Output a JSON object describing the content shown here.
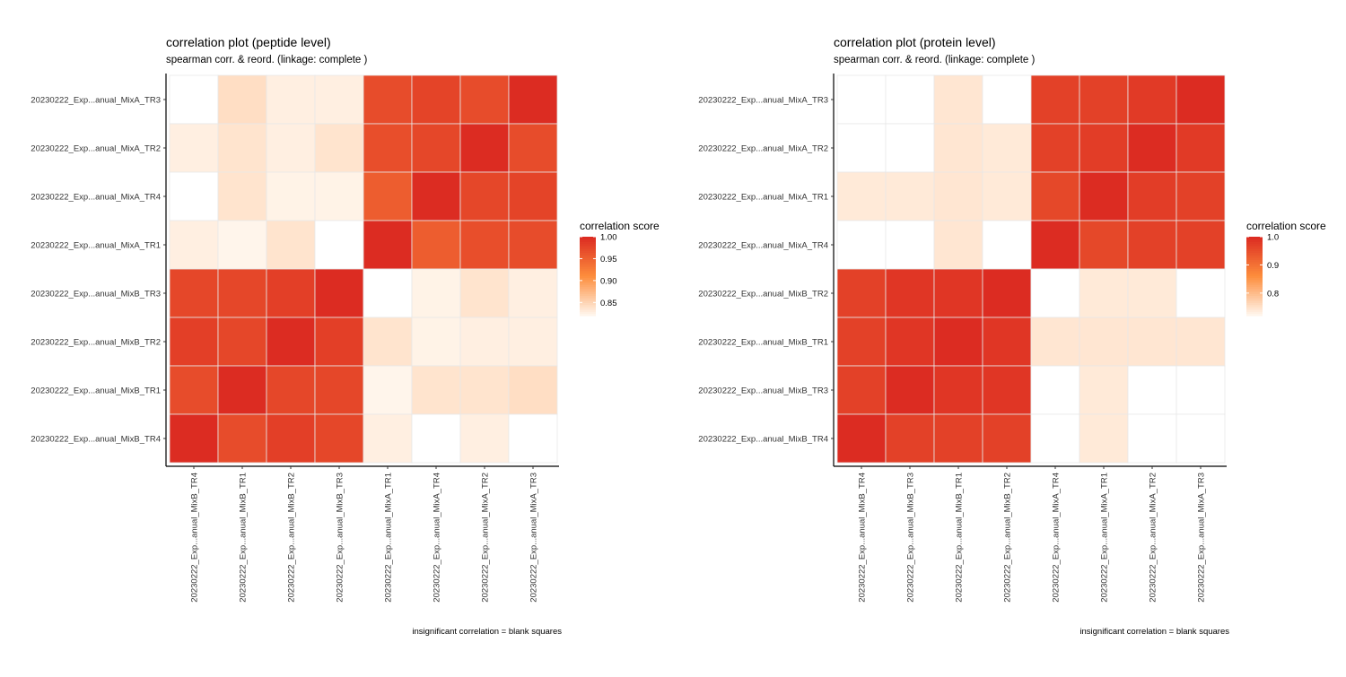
{
  "chart_data": [
    {
      "type": "heatmap",
      "title": "correlation plot (peptide level)",
      "subtitle": "spearman corr. & reord. (linkage: complete )",
      "caption": "insignificant correlation = blank squares",
      "x_labels": [
        "20230222_Exp...anual_MixB_TR4",
        "20230222_Exp...anual_MixB_TR1",
        "20230222_Exp...anual_MixB_TR2",
        "20230222_Exp...anual_MixB_TR3",
        "20230222_Exp...anual_MixA_TR1",
        "20230222_Exp...anual_MixA_TR4",
        "20230222_Exp...anual_MixA_TR2",
        "20230222_Exp...anual_MixA_TR3"
      ],
      "y_labels_top_to_bottom": [
        "20230222_Exp...anual_MixA_TR3",
        "20230222_Exp...anual_MixA_TR2",
        "20230222_Exp...anual_MixA_TR4",
        "20230222_Exp...anual_MixA_TR1",
        "20230222_Exp...anual_MixB_TR3",
        "20230222_Exp...anual_MixB_TR2",
        "20230222_Exp...anual_MixB_TR1",
        "20230222_Exp...anual_MixB_TR4"
      ],
      "values": [
        [
          null,
          0.84,
          0.825,
          0.825,
          0.97,
          0.978,
          0.97,
          1.0
        ],
        [
          0.825,
          0.835,
          0.825,
          0.835,
          0.968,
          0.975,
          1.0,
          0.97
        ],
        [
          null,
          0.835,
          0.822,
          0.822,
          0.955,
          1.0,
          0.975,
          0.978
        ],
        [
          0.825,
          0.82,
          0.835,
          null,
          1.0,
          0.955,
          0.968,
          0.97
        ],
        [
          0.975,
          0.975,
          0.982,
          1.0,
          null,
          0.822,
          0.835,
          0.825
        ],
        [
          0.982,
          0.975,
          1.0,
          0.982,
          0.835,
          0.822,
          0.825,
          0.825
        ],
        [
          0.97,
          1.0,
          0.975,
          0.975,
          0.82,
          0.835,
          0.835,
          0.84
        ],
        [
          1.0,
          0.97,
          0.982,
          0.975,
          0.825,
          null,
          0.825,
          null
        ]
      ],
      "legend": {
        "title": "correlation score",
        "ticks": [
          1.0,
          0.95,
          0.9,
          0.85
        ],
        "tick_labels": [
          "1.00",
          "0.95",
          "0.90",
          "0.85"
        ],
        "range": [
          0.82,
          1.0
        ],
        "position": "right"
      },
      "colors": {
        "high": "#dc2c22",
        "mid": "#fd8d3c",
        "low": "#fff5eb",
        "grid": "#e8e8e8",
        "blank": "#ffffff"
      }
    },
    {
      "type": "heatmap",
      "title": "correlation plot (protein level)",
      "subtitle": "spearman corr. & reord. (linkage: complete )",
      "caption": "insignificant correlation = blank squares",
      "x_labels": [
        "20230222_Exp...anual_MixB_TR4",
        "20230222_Exp...anual_MixB_TR3",
        "20230222_Exp...anual_MixB_TR1",
        "20230222_Exp...anual_MixB_TR2",
        "20230222_Exp...anual_MixA_TR4",
        "20230222_Exp...anual_MixA_TR1",
        "20230222_Exp...anual_MixA_TR2",
        "20230222_Exp...anual_MixA_TR3"
      ],
      "y_labels_top_to_bottom": [
        "20230222_Exp...anual_MixA_TR3",
        "20230222_Exp...anual_MixA_TR2",
        "20230222_Exp...anual_MixA_TR1",
        "20230222_Exp...anual_MixA_TR4",
        "20230222_Exp...anual_MixB_TR2",
        "20230222_Exp...anual_MixB_TR1",
        "20230222_Exp...anual_MixB_TR3",
        "20230222_Exp...anual_MixB_TR4"
      ],
      "values": [
        [
          null,
          null,
          0.74,
          null,
          0.97,
          0.97,
          0.98,
          1.0
        ],
        [
          null,
          null,
          0.74,
          0.735,
          0.97,
          0.975,
          1.0,
          0.98
        ],
        [
          0.735,
          0.735,
          0.74,
          0.735,
          0.96,
          1.0,
          0.975,
          0.97
        ],
        [
          null,
          null,
          0.74,
          null,
          1.0,
          0.96,
          0.97,
          0.97
        ],
        [
          0.97,
          0.985,
          0.985,
          1.0,
          null,
          0.735,
          0.735,
          null
        ],
        [
          0.97,
          0.985,
          1.0,
          0.985,
          0.74,
          0.74,
          0.74,
          0.74
        ],
        [
          0.97,
          1.0,
          0.985,
          0.985,
          null,
          0.735,
          null,
          null
        ],
        [
          1.0,
          0.97,
          0.97,
          0.97,
          null,
          0.735,
          null,
          null
        ]
      ],
      "legend": {
        "title": "correlation score",
        "ticks": [
          1.0,
          0.9,
          0.8
        ],
        "tick_labels": [
          "1.0",
          "0.9",
          "0.8"
        ],
        "range": [
          0.72,
          1.0
        ],
        "position": "right"
      },
      "colors": {
        "high": "#dc2c22",
        "mid": "#fd8d3c",
        "low": "#fff5eb",
        "grid": "#e8e8e8",
        "blank": "#ffffff"
      }
    }
  ]
}
